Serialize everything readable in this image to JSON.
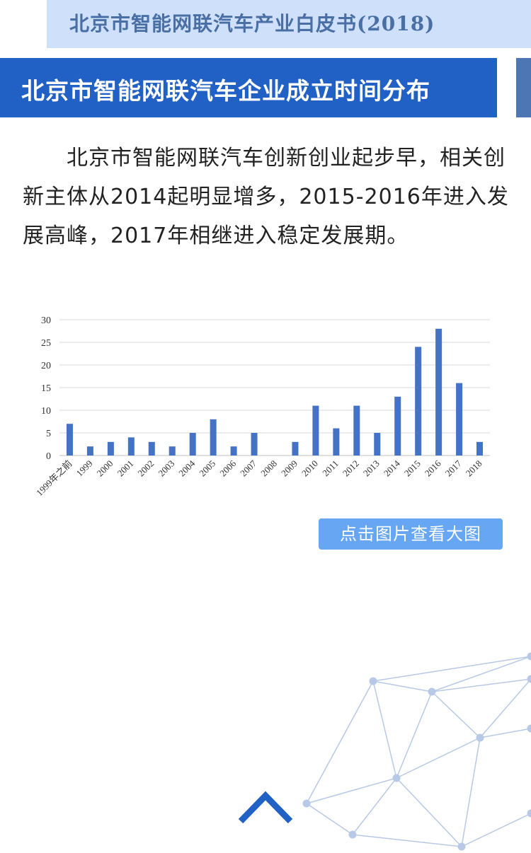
{
  "header": {
    "title": "北京市智能网联汽车产业白皮书(2018)"
  },
  "section": {
    "heading": "北京市智能网联汽车企业成立时间分布"
  },
  "intro": {
    "text": "北京市智能网联汽车创新创业起步早，相关创新主体从2014起明显增多，2015-2016年进入发展高峰，2017年相继进入稳定发展期。"
  },
  "chart_data": {
    "type": "bar",
    "categories": [
      "1999年之前",
      "1999",
      "2000",
      "2001",
      "2002",
      "2003",
      "2004",
      "2005",
      "2006",
      "2007",
      "2008",
      "2009",
      "2010",
      "2011",
      "2012",
      "2013",
      "2014",
      "2015",
      "2016",
      "2017",
      "2018"
    ],
    "values": [
      7,
      2,
      3,
      4,
      3,
      2,
      5,
      8,
      2,
      5,
      0,
      3,
      11,
      6,
      11,
      5,
      13,
      24,
      28,
      16,
      3
    ],
    "yticks": [
      0,
      5,
      10,
      15,
      20,
      25,
      30
    ],
    "ylim": [
      0,
      30
    ],
    "grid": true,
    "bar_color": "#4472c4"
  },
  "actions": {
    "view_large": "点击图片查看大图"
  },
  "decor": {
    "network_color": "#b7c9e6",
    "arrow_color": "#2160c4"
  }
}
